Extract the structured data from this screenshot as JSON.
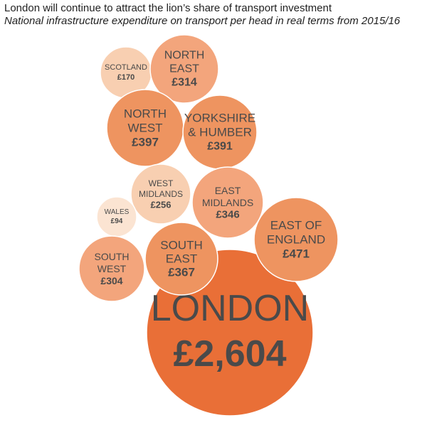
{
  "title": "London will continue to attract the lion’s share of transport investment",
  "subtitle": "National infrastructure expenditure on transport per head in real terms from 2015/16",
  "colors": {
    "label": "#4a4a4a",
    "london": "#e96f37",
    "high": "#ee9460",
    "mid": "#f3a57c",
    "low": "#f8cfb1",
    "lowest": "#fbe4d2"
  },
  "chart_data": {
    "type": "bubble",
    "title": "London will continue to attract the lion’s share of transport investment",
    "subtitle": "National infrastructure expenditure on transport per head in real terms from 2015/16",
    "unit": "£ per head",
    "regions": [
      {
        "name": "LONDON",
        "label_lines": [
          "LONDON"
        ],
        "value_label": "£2,604",
        "value": 2604
      },
      {
        "name": "EAST OF ENGLAND",
        "label_lines": [
          "EAST OF",
          "ENGLAND"
        ],
        "value_label": "£471",
        "value": 471
      },
      {
        "name": "NORTH WEST",
        "label_lines": [
          "NORTH",
          "WEST"
        ],
        "value_label": "£397",
        "value": 397
      },
      {
        "name": "YORKSHIRE & HUMBER",
        "label_lines": [
          "YORKSHIRE",
          "& HUMBER"
        ],
        "value_label": "£391",
        "value": 391
      },
      {
        "name": "SOUTH EAST",
        "label_lines": [
          "SOUTH",
          "EAST"
        ],
        "value_label": "£367",
        "value": 367
      },
      {
        "name": "EAST MIDLANDS",
        "label_lines": [
          "EAST",
          "MIDLANDS"
        ],
        "value_label": "£346",
        "value": 346
      },
      {
        "name": "NORTH EAST",
        "label_lines": [
          "NORTH",
          "EAST"
        ],
        "value_label": "£314",
        "value": 314
      },
      {
        "name": "SOUTH WEST",
        "label_lines": [
          "SOUTH",
          "WEST"
        ],
        "value_label": "£304",
        "value": 304
      },
      {
        "name": "WEST MIDLANDS",
        "label_lines": [
          "WEST",
          "MIDLANDS"
        ],
        "value_label": "£256",
        "value": 256
      },
      {
        "name": "SCOTLAND",
        "label_lines": [
          "SCOTLAND"
        ],
        "value_label": "£170",
        "value": 170
      },
      {
        "name": "WALES",
        "label_lines": [
          "WALES"
        ],
        "value_label": "£94",
        "value": 94
      }
    ]
  }
}
